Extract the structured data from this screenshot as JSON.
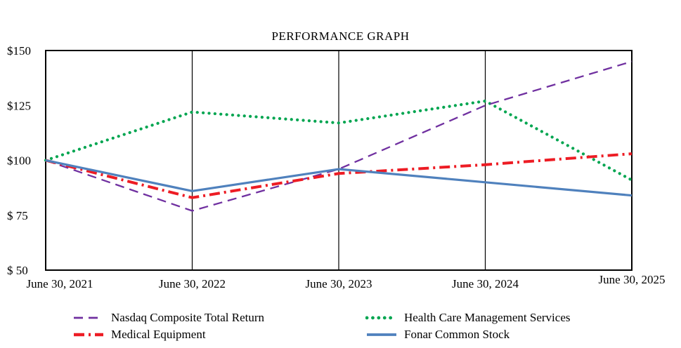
{
  "title": "PERFORMANCE GRAPH",
  "chart_data": {
    "type": "line",
    "title": "PERFORMANCE GRAPH",
    "x_labels": [
      "June 30, 2021",
      "June 30, 2022",
      "June 30, 2023",
      "June 30, 2024",
      "June 30, 2025"
    ],
    "y_ticks": [
      {
        "label": "$150",
        "value": 150
      },
      {
        "label": "$125",
        "value": 125
      },
      {
        "label": "$100",
        "value": 100
      },
      {
        "label": "$ 75",
        "value": 75
      },
      {
        "label": "$ 50",
        "value": 50
      }
    ],
    "ylim": [
      50,
      150
    ],
    "grid": "vertical-only",
    "legend_position": "bottom",
    "axis_color": "#000000",
    "series": [
      {
        "name": "Health Care Management Services",
        "color": "#00A550",
        "style": "dotted",
        "values": [
          100,
          122,
          117,
          127,
          91
        ]
      },
      {
        "name": "Nasdaq Composite Total Return",
        "color": "#7030A0",
        "style": "dashed",
        "values": [
          100,
          77,
          96,
          125,
          145
        ]
      },
      {
        "name": "Medical Equipment",
        "color": "#ED1C24",
        "style": "dashdot",
        "values": [
          100,
          83,
          94,
          98,
          103
        ]
      },
      {
        "name": "Fonar Common Stock",
        "color": "#4F81BD",
        "style": "solid",
        "values": [
          100,
          86,
          96,
          90,
          84
        ]
      }
    ]
  }
}
